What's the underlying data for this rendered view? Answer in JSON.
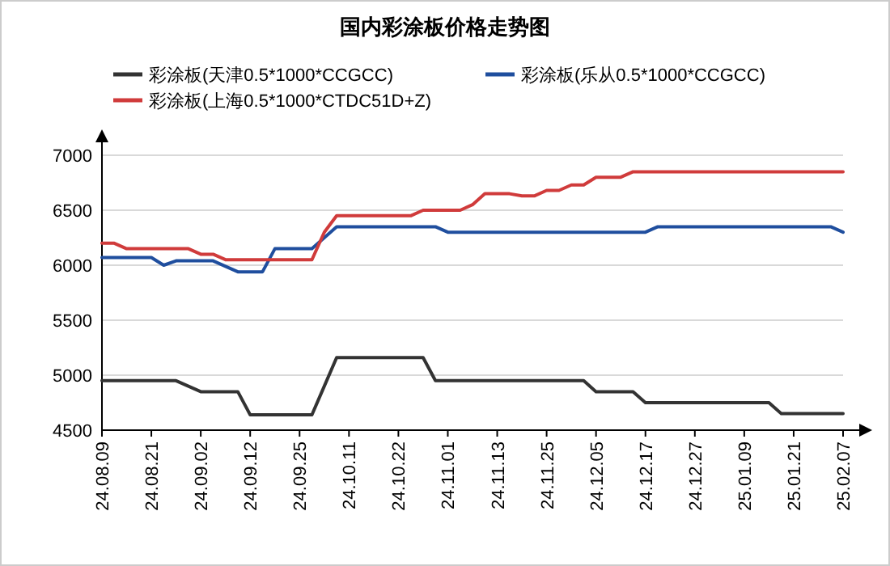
{
  "chart_data": {
    "type": "line",
    "title": "国内彩涂板价格走势图",
    "categories": [
      "24.08.09",
      null,
      null,
      null,
      "24.08.21",
      null,
      null,
      null,
      "24.09.02",
      null,
      null,
      null,
      "24.09.12",
      null,
      null,
      null,
      "24.09.25",
      null,
      null,
      null,
      "24.10.11",
      null,
      null,
      null,
      "24.10.22",
      null,
      null,
      null,
      "24.11.01",
      null,
      null,
      null,
      "24.11.13",
      null,
      null,
      null,
      "24.11.25",
      null,
      null,
      null,
      "24.12.05",
      null,
      null,
      null,
      "24.12.17",
      null,
      null,
      null,
      "24.12.27",
      null,
      null,
      null,
      "25.01.09",
      null,
      null,
      null,
      "25.01.21",
      null,
      null,
      null,
      "25.02.07"
    ],
    "series": [
      {
        "name": "彩涂板(天津0.5*1000*CCGCC)",
        "color": "#333333",
        "values": [
          4950,
          4950,
          4950,
          4950,
          4950,
          4950,
          4950,
          4900,
          4850,
          4850,
          4850,
          4850,
          4640,
          4640,
          4640,
          4640,
          4640,
          4640,
          4900,
          5160,
          5160,
          5160,
          5160,
          5160,
          5160,
          5160,
          5160,
          4950,
          4950,
          4950,
          4950,
          4950,
          4950,
          4950,
          4950,
          4950,
          4950,
          4950,
          4950,
          4950,
          4850,
          4850,
          4850,
          4850,
          4750,
          4750,
          4750,
          4750,
          4750,
          4750,
          4750,
          4750,
          4750,
          4750,
          4750,
          4650,
          4650,
          4650,
          4650,
          4650,
          4650
        ]
      },
      {
        "name": "彩涂板(乐从0.5*1000*CCGCC)",
        "color": "#1f4e9e",
        "values": [
          6070,
          6070,
          6070,
          6070,
          6070,
          6000,
          6040,
          6040,
          6040,
          6040,
          5990,
          5940,
          5940,
          5940,
          6150,
          6150,
          6150,
          6150,
          6250,
          6350,
          6350,
          6350,
          6350,
          6350,
          6350,
          6350,
          6350,
          6350,
          6300,
          6300,
          6300,
          6300,
          6300,
          6300,
          6300,
          6300,
          6300,
          6300,
          6300,
          6300,
          6300,
          6300,
          6300,
          6300,
          6300,
          6350,
          6350,
          6350,
          6350,
          6350,
          6350,
          6350,
          6350,
          6350,
          6350,
          6350,
          6350,
          6350,
          6350,
          6350,
          6300
        ]
      },
      {
        "name": "彩涂板(上海0.5*1000*CTDC51D+Z)",
        "color": "#d03b3b",
        "values": [
          6200,
          6200,
          6150,
          6150,
          6150,
          6150,
          6150,
          6150,
          6100,
          6100,
          6050,
          6050,
          6050,
          6050,
          6050,
          6050,
          6050,
          6050,
          6300,
          6450,
          6450,
          6450,
          6450,
          6450,
          6450,
          6450,
          6500,
          6500,
          6500,
          6500,
          6550,
          6650,
          6650,
          6650,
          6630,
          6630,
          6680,
          6680,
          6730,
          6730,
          6800,
          6800,
          6800,
          6850,
          6850,
          6850,
          6850,
          6850,
          6850,
          6850,
          6850,
          6850,
          6850,
          6850,
          6850,
          6850,
          6850,
          6850,
          6850,
          6850,
          6850
        ]
      }
    ],
    "ylim": [
      4500,
      7000
    ],
    "yticks": [
      4500,
      5000,
      5500,
      6000,
      6500,
      7000
    ],
    "grid": "y",
    "legend": "top",
    "marker": "none",
    "line_style": "solid"
  }
}
